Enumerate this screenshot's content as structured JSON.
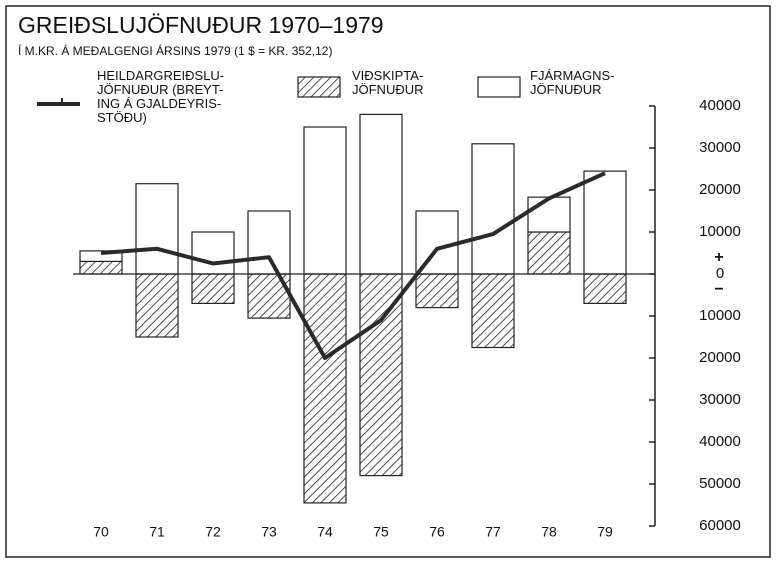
{
  "chart_data": {
    "type": "bar",
    "title": "GREIÐSLUJÖFNUÐUR 1970–1979",
    "subtitle": "Í M.KR. Á MEÐALGENGI ÁRSINS 1979 (1 $ = KR. 352,12)",
    "categories": [
      "70",
      "71",
      "72",
      "73",
      "74",
      "75",
      "76",
      "77",
      "78",
      "79"
    ],
    "series": [
      {
        "name": "VIÐSKIPTA-\nJÖFNUÐUR",
        "color": "#222222",
        "style": "hatched",
        "values": [
          3000,
          -15000,
          -7000,
          -10500,
          -54500,
          -48000,
          -8000,
          -17500,
          10000,
          -7000
        ]
      },
      {
        "name": "FJÁRMAGNS-\nJÖFNUÐUR",
        "color": "#ffffff",
        "style": "open",
        "values": [
          2500,
          21500,
          10000,
          15000,
          35000,
          38000,
          15000,
          31000,
          8300,
          24500
        ]
      },
      {
        "name": "HEILDARGREIÐSLU-\nJÖFNUÐUR (BREYT-\nING Á GJALDEYRIS-\nSTÖÐU)",
        "color": "#2a2a2a",
        "style": "line",
        "values": [
          5000,
          6000,
          2500,
          4000,
          -20000,
          -11000,
          6000,
          9500,
          18000,
          24000
        ]
      }
    ],
    "ylim": [
      -60000,
      40000
    ],
    "yticks": [
      {
        "value": -60000,
        "label": "60000"
      },
      {
        "value": -50000,
        "label": "50000"
      },
      {
        "value": -40000,
        "label": "40000"
      },
      {
        "value": -30000,
        "label": "30000"
      },
      {
        "value": -20000,
        "label": "20000"
      },
      {
        "value": -10000,
        "label": "10000"
      },
      0,
      10000,
      20000,
      30000,
      40000
    ],
    "annotations": [
      "+",
      "−"
    ]
  }
}
